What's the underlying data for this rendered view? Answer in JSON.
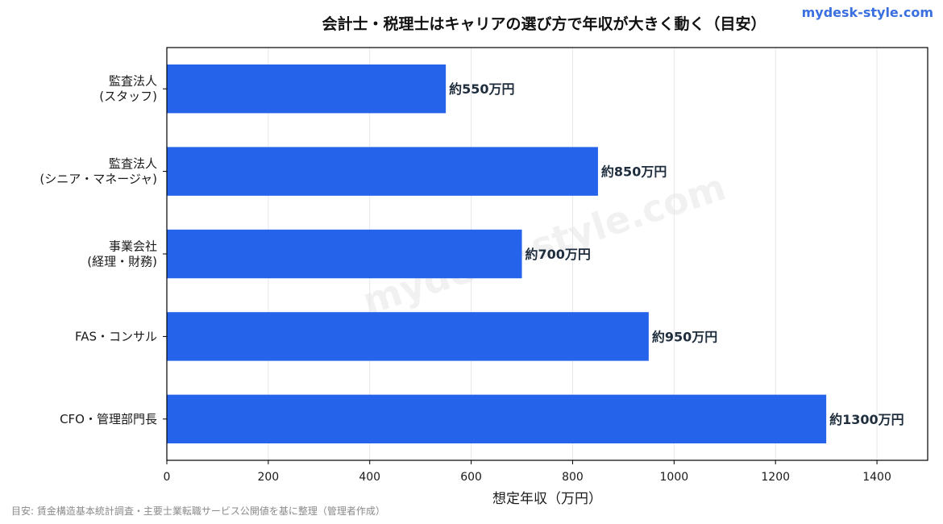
{
  "brand": "mydesk-style.com",
  "footer_note": "目安: 賃金構造基本統計調査・主要士業転職サービス公開値を基に整理（管理者作成）",
  "colors": {
    "bar": "#2563eb",
    "grid": "#e5e7eb",
    "axis": "#000000",
    "label": "#1f2d3d"
  },
  "chart_data": {
    "type": "bar",
    "orientation": "horizontal",
    "title": "会計士・税理士はキャリアの選び方で年収が大きく動く（目安）",
    "xlabel": "想定年収（万円）",
    "ylabel": "",
    "xlim": [
      0,
      1500
    ],
    "xticks": [
      0,
      200,
      400,
      600,
      800,
      1000,
      1200,
      1400
    ],
    "grid": "vertical",
    "categories": [
      [
        "監査法人",
        "(スタッフ)"
      ],
      [
        "監査法人",
        "(シニア・マネージャ)"
      ],
      [
        "事業会社",
        "(経理・財務)"
      ],
      [
        "FAS・コンサル"
      ],
      [
        "CFO・管理部門長"
      ]
    ],
    "values": [
      550,
      850,
      700,
      950,
      1300
    ],
    "data_labels": [
      "約550万円",
      "約850万円",
      "約700万円",
      "約950万円",
      "約1300万円"
    ],
    "watermark": "mydesk-style.com"
  }
}
